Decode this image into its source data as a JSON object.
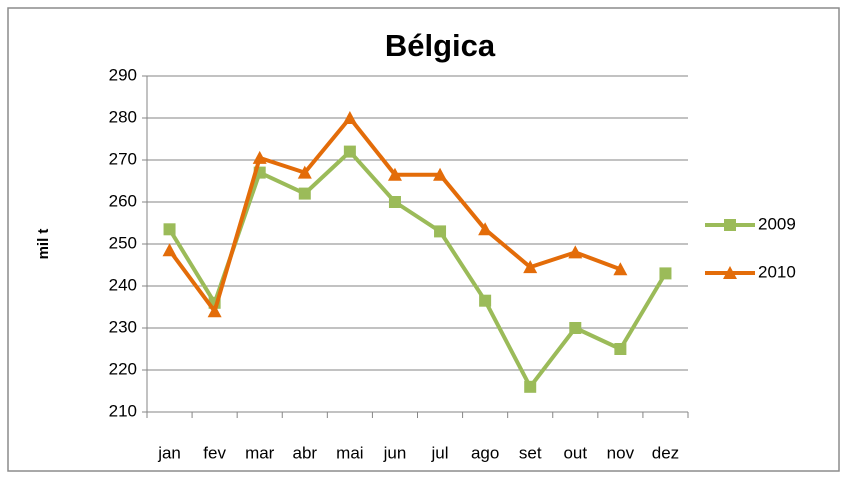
{
  "chart_data": {
    "type": "line",
    "title": "Bélgica",
    "y_label": "mil t",
    "categories": [
      "jan",
      "fev",
      "mar",
      "abr",
      "mai",
      "jun",
      "jul",
      "ago",
      "set",
      "out",
      "nov",
      "dez"
    ],
    "series": [
      {
        "name": "2009",
        "color": "#9bbb59",
        "marker": "square",
        "values": [
          253.5,
          236,
          267,
          262,
          272,
          260,
          253,
          236.5,
          216,
          230,
          225,
          243
        ]
      },
      {
        "name": "2010",
        "color": "#e36c09",
        "marker": "triangle",
        "values": [
          248.5,
          234,
          270.5,
          267,
          280,
          266.5,
          266.5,
          253.5,
          244.5,
          248,
          244,
          null
        ]
      }
    ],
    "ylim": [
      210,
      290
    ],
    "yticks": [
      210,
      220,
      230,
      240,
      250,
      260,
      270,
      280,
      290
    ],
    "grid": true,
    "legend": "right"
  }
}
